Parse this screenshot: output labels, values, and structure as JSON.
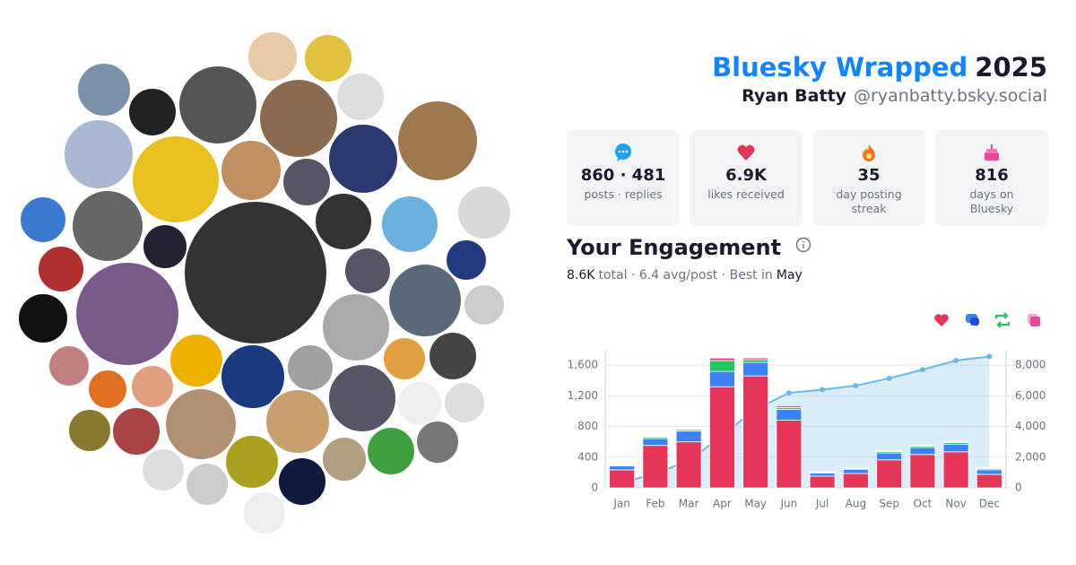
{
  "header": {
    "title": "Bluesky Wrapped",
    "year": "2025",
    "name": "Ryan Batty",
    "handle": "@ryanbatty.bsky.social"
  },
  "stats": [
    {
      "value": "860 · 481",
      "label": "posts · replies"
    },
    {
      "value": "6.9K",
      "label": "likes received"
    },
    {
      "value": "35",
      "label": "day posting streak"
    },
    {
      "value": "816",
      "label": "days on Bluesky"
    }
  ],
  "engagement": {
    "title": "Your Engagement",
    "total": "8.6K",
    "summary": "total · 6.4 avg/post · Best in",
    "best": "May"
  },
  "chart_data": {
    "type": "bar",
    "stacked": true,
    "grid": true,
    "categories": [
      "Jan",
      "Feb",
      "Mar",
      "Apr",
      "May",
      "Jun",
      "Jul",
      "Aug",
      "Sep",
      "Oct",
      "Nov",
      "Dec"
    ],
    "series": [
      {
        "color": "#e5365a",
        "values": [
          235,
          553,
          600,
          1318,
          1459,
          882,
          153,
          188,
          365,
          435,
          470,
          176
        ]
      },
      {
        "color": "#3b82f6",
        "values": [
          50,
          90,
          140,
          200,
          176,
          141,
          40,
          55,
          90,
          90,
          100,
          60
        ]
      },
      {
        "color": "#22c55e",
        "values": [
          5,
          20,
          20,
          140,
          35,
          24,
          10,
          10,
          18,
          20,
          20,
          15
        ]
      },
      {
        "color": "#ec4899",
        "values": [
          5,
          5,
          5,
          35,
          24,
          23,
          9,
          6,
          9,
          8,
          10,
          8
        ]
      },
      {
        "type": "line",
        "axis": "y2",
        "color": "#6cb8ec",
        "values": [
          300,
          970,
          1735,
          3430,
          5120,
          6190,
          6400,
          6660,
          7140,
          7700,
          8300,
          8560
        ]
      }
    ],
    "ylim": [
      0,
      1800
    ],
    "yticks": [
      0,
      400,
      800,
      {
        "value": 1200,
        "label": "1,200"
      },
      {
        "value": 1600,
        "label": "1,600"
      }
    ],
    "y2lim": [
      0,
      9000
    ],
    "y2ticks": [
      0,
      {
        "value": 2000,
        "label": "2,000"
      },
      {
        "value": 4000,
        "label": "4,000"
      },
      {
        "value": 6000,
        "label": "6,000"
      },
      {
        "value": 8000,
        "label": "8,000"
      }
    ]
  }
}
